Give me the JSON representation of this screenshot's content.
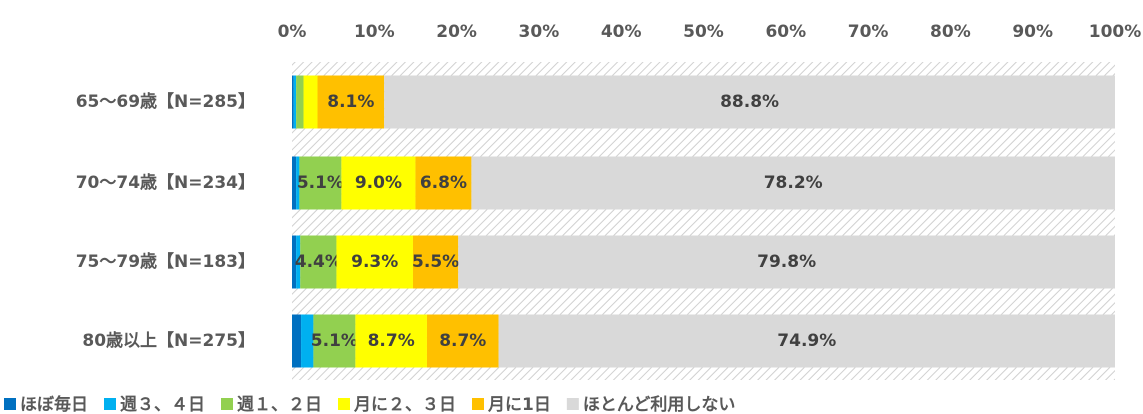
{
  "chart_data": {
    "type": "stacked_bar_horizontal",
    "categories": [
      "65～69歳【N=285】",
      "70～74歳【N=234】",
      "75～79歳【N=183】",
      "80歳以上【N=275】"
    ],
    "series": [
      {
        "name": "ほぼ毎日",
        "color": "#0070c0",
        "values": [
          0.2,
          0.5,
          0.5,
          1.1
        ],
        "value_labels": [
          null,
          null,
          null,
          null
        ]
      },
      {
        "name": "週３、４日",
        "color": "#00b0f0",
        "values": [
          0.3,
          0.4,
          0.5,
          1.5
        ],
        "value_labels": [
          null,
          null,
          null,
          null
        ]
      },
      {
        "name": "週１、２日",
        "color": "#92d050",
        "values": [
          0.9,
          5.1,
          4.4,
          5.1
        ],
        "value_labels": [
          null,
          "5.1%",
          "4.4%",
          "5.1%"
        ]
      },
      {
        "name": "月に２、３日",
        "color": "#ffff00",
        "values": [
          1.7,
          9.0,
          9.3,
          8.7
        ],
        "value_labels": [
          null,
          "9.0%",
          "9.3%",
          "8.7%"
        ]
      },
      {
        "name": "月に1日",
        "color": "#ffc000",
        "values": [
          8.1,
          6.8,
          5.5,
          8.7
        ],
        "value_labels": [
          "8.1%",
          "6.8%",
          "5.5%",
          "8.7%"
        ]
      },
      {
        "name": "ほとんど利用しない",
        "color": "#d9d9d9",
        "values": [
          88.8,
          78.2,
          79.8,
          74.9
        ],
        "value_labels": [
          "88.8%",
          "78.2%",
          "79.8%",
          "74.9%"
        ]
      }
    ],
    "xlim": [
      0,
      100
    ],
    "xticks": [
      {
        "value": 0,
        "label": "0%"
      },
      {
        "value": 10,
        "label": "10%"
      },
      {
        "value": 20,
        "label": "20%"
      },
      {
        "value": 30,
        "label": "30%"
      },
      {
        "value": 40,
        "label": "40%"
      },
      {
        "value": 50,
        "label": "50%"
      },
      {
        "value": 60,
        "label": "60%"
      },
      {
        "value": 70,
        "label": "70%"
      },
      {
        "value": 80,
        "label": "80%"
      },
      {
        "value": 90,
        "label": "90%"
      },
      {
        "value": 100,
        "label": "100%"
      }
    ],
    "legend": "bottom"
  }
}
